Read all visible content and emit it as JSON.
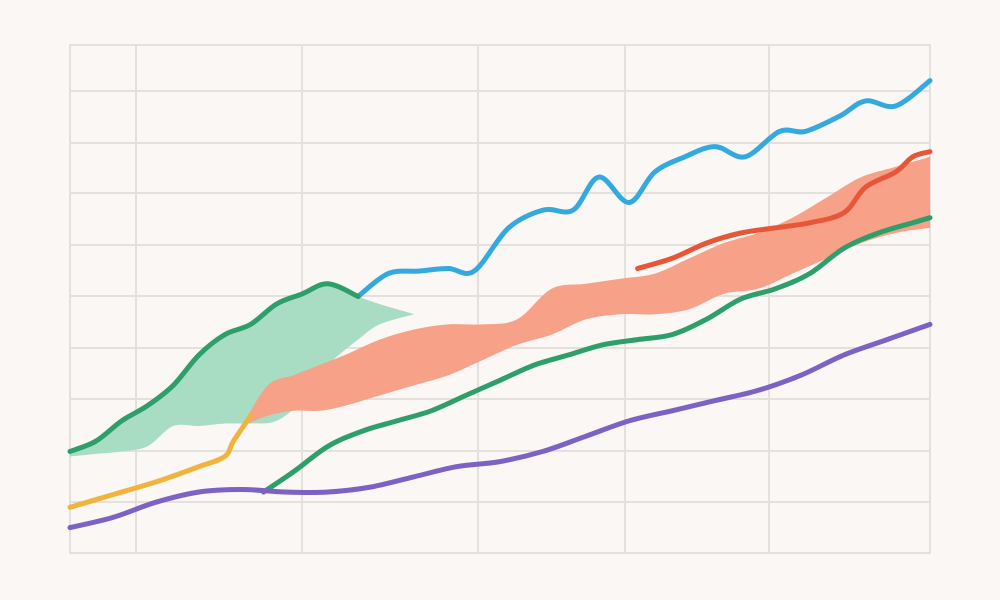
{
  "chart_data": {
    "type": "line",
    "title": "",
    "xlabel": "",
    "ylabel": "",
    "xlim": [
      0,
      100
    ],
    "ylim": [
      0,
      100
    ],
    "grid": true,
    "legend": "none",
    "colors": {
      "background": "#faf7f4",
      "grid": "#e4e0dc",
      "blue": "#34a9dd",
      "red": "#e8563a",
      "salmon": "#f7a188",
      "green": "#2e9e6a",
      "mint": "#a8dcc3",
      "yellow": "#f2b23e",
      "purple": "#7b62c4"
    },
    "series": [
      {
        "color": "blue",
        "x": [
          33.5,
          37,
          40.5,
          44,
          47,
          51,
          55,
          58.5,
          61.5,
          65,
          68,
          71.5,
          75,
          78.5,
          82.5,
          85.5,
          89.5,
          92.5,
          96,
          100
        ],
        "y": [
          50.5,
          55,
          55.5,
          56,
          55.5,
          64,
          67.5,
          67.5,
          74,
          69,
          75,
          78,
          80,
          78,
          83,
          83,
          86,
          89,
          88,
          93
        ]
      },
      {
        "color": "green",
        "x": [
          0,
          3,
          6,
          9,
          12,
          15,
          18,
          21,
          24,
          27,
          30,
          33.5
        ],
        "y": [
          20,
          22,
          26,
          29,
          33,
          39,
          43,
          45,
          49,
          51,
          53,
          50.5
        ]
      },
      {
        "color": "red",
        "x": [
          66,
          70,
          74,
          78,
          82,
          86,
          90,
          92.5,
          96,
          98,
          100
        ],
        "y": [
          56,
          58,
          61,
          63,
          64,
          65,
          67,
          72,
          75,
          78,
          79
        ]
      },
      {
        "color": "green",
        "x": [
          22.5,
          26,
          30,
          34,
          38,
          42,
          46,
          50,
          54,
          58,
          62,
          66,
          70,
          74,
          78,
          82,
          86,
          90,
          94,
          98,
          100
        ],
        "y": [
          12,
          16,
          21,
          24,
          26,
          28,
          31,
          34,
          37,
          39,
          41,
          42,
          43,
          46,
          50,
          52,
          55,
          60,
          63,
          65,
          66
        ]
      },
      {
        "color": "purple",
        "x": [
          0,
          5,
          10,
          15,
          20,
          25,
          30,
          35,
          40,
          45,
          50,
          55,
          60,
          65,
          70,
          75,
          80,
          85,
          90,
          95,
          100
        ],
        "y": [
          5,
          7,
          10,
          12,
          12.5,
          12,
          12,
          13,
          15,
          17,
          18,
          20,
          23,
          26,
          28,
          30,
          32,
          35,
          39,
          42,
          45
        ]
      },
      {
        "color": "yellow",
        "x": [
          0,
          5,
          10,
          15,
          18,
          19,
          21
        ],
        "y": [
          9,
          11.5,
          14,
          17,
          19,
          22,
          27
        ]
      }
    ],
    "bands": [
      {
        "color": "mint",
        "x": [
          0,
          3,
          6,
          9,
          12,
          15,
          18,
          21,
          24,
          27,
          30,
          33.5,
          36,
          40
        ],
        "upper": [
          20,
          22,
          26,
          29,
          33,
          39,
          43,
          45,
          49,
          51,
          53,
          50.5,
          49,
          47
        ],
        "lower": [
          19,
          19.5,
          20,
          21,
          25,
          25,
          25.5,
          25.5,
          26,
          30,
          37,
          42,
          45,
          47
        ]
      },
      {
        "color": "salmon",
        "x": [
          20,
          23,
          26,
          29,
          32,
          36,
          40,
          44,
          48,
          52,
          56,
          60,
          64,
          68,
          72,
          76,
          80,
          84,
          88,
          92,
          96,
          100
        ],
        "upper": [
          25,
          33,
          35,
          37,
          39,
          42,
          44,
          45,
          45,
          46,
          52,
          53,
          54,
          55,
          58,
          61,
          63,
          66,
          70,
          74,
          76,
          78
        ],
        "lower": [
          25,
          27,
          28,
          28,
          29,
          31,
          33,
          35,
          38,
          41,
          43,
          46,
          47,
          47,
          48,
          51,
          52,
          55,
          58,
          61,
          63,
          64
        ]
      }
    ]
  }
}
